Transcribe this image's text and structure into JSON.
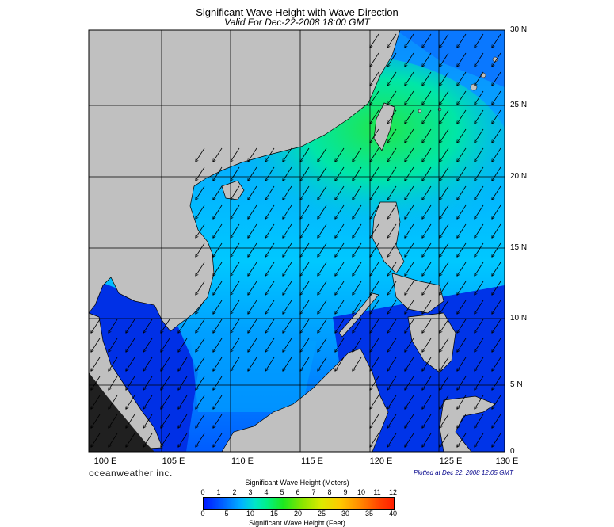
{
  "header": {
    "title": "Significant Wave Height with Wave Direction",
    "subtitle": "Valid For Dec-22-2008 18:00 GMT"
  },
  "map": {
    "lon_labels": [
      "100 E",
      "105 E",
      "110 E",
      "115 E",
      "120 E",
      "125 E",
      "130 E"
    ],
    "lat_labels": [
      "30 N",
      "25 N",
      "20 N",
      "15 N",
      "10 N",
      "5 N",
      "0"
    ],
    "colors": {
      "land": "#c0c0c0",
      "deep_blue": "#0028e6",
      "cyan": "#00c8ff",
      "green": "#22e64a"
    }
  },
  "footer": {
    "brand": "oceanweather inc.",
    "plotted": "Plotted at Dec 22, 2008 12:05 GMT"
  },
  "legend": {
    "meters_title": "Significant Wave Height (Meters)",
    "feet_title": "Significant Wave Height (Feet)",
    "meters_ticks": [
      "0",
      "1",
      "2",
      "3",
      "4",
      "5",
      "6",
      "7",
      "8",
      "9",
      "10",
      "11",
      "12"
    ],
    "feet_ticks": [
      "0",
      "5",
      "10",
      "15",
      "20",
      "25",
      "30",
      "35",
      "40"
    ]
  }
}
